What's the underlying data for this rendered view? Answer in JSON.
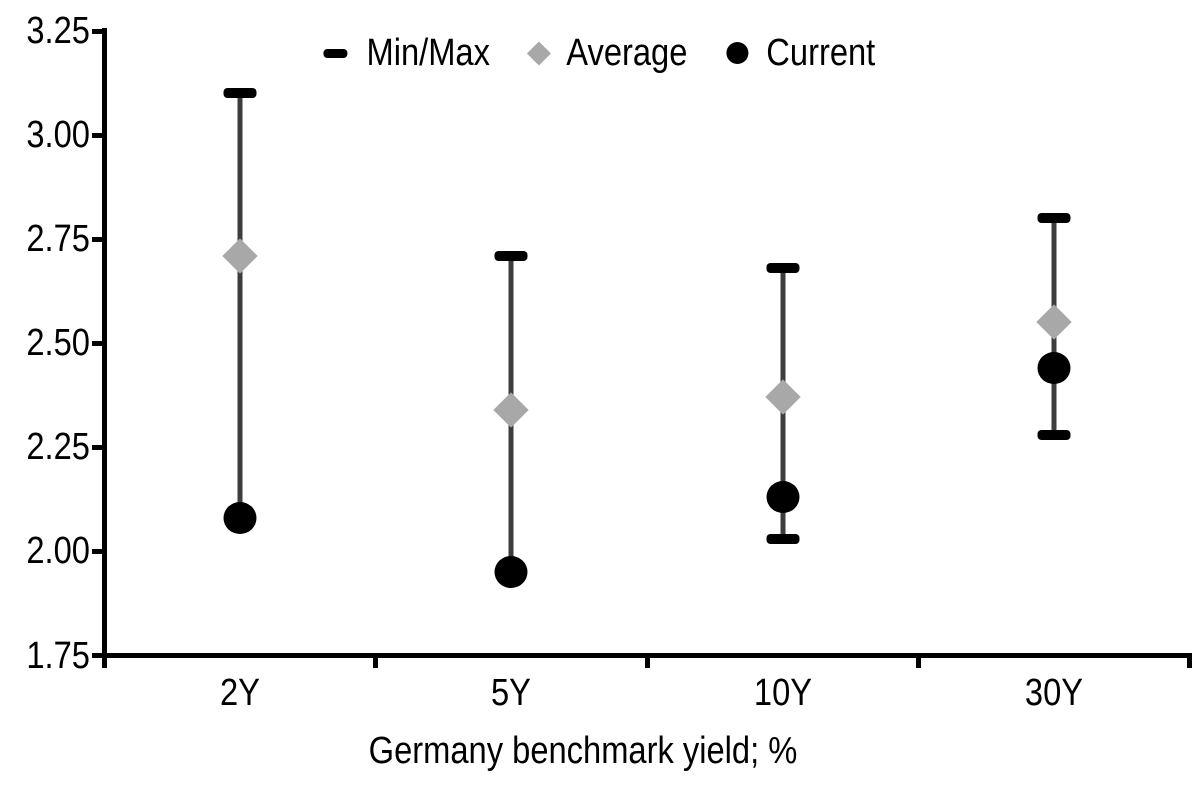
{
  "chart_data": {
    "type": "scatter",
    "subtype": "min-max-range-with-average-and-current",
    "title": "",
    "xlabel": "Germany benchmark yield; %",
    "ylabel": "",
    "categories": [
      "2Y",
      "5Y",
      "10Y",
      "30Y"
    ],
    "series": [
      {
        "name": "Min/Max",
        "marker": "dash-cap",
        "color": "#000000",
        "max_values": [
          3.1,
          2.71,
          2.68,
          2.8
        ],
        "min_values": [
          2.08,
          1.95,
          2.03,
          2.28
        ],
        "min_cap_visible": [
          false,
          false,
          true,
          true
        ]
      },
      {
        "name": "Average",
        "marker": "diamond",
        "color": "#a8a8a8",
        "values": [
          2.71,
          2.34,
          2.37,
          2.55
        ]
      },
      {
        "name": "Current",
        "marker": "circle",
        "color": "#000000",
        "values": [
          2.08,
          1.95,
          2.13,
          2.44
        ]
      }
    ],
    "ylim": [
      1.75,
      3.25
    ],
    "y_tick_step": 0.25,
    "y_tick_labels": [
      "1.75",
      "2.00",
      "2.25",
      "2.50",
      "2.75",
      "3.00",
      "3.25"
    ],
    "grid": false,
    "legend_position": "top-center",
    "colors": {
      "range_line": "#3d3d3d",
      "range_cap": "#000000",
      "average_marker": "#a8a8a8",
      "current_marker": "#000000",
      "axis": "#000000",
      "text": "#000000",
      "background": "#ffffff"
    }
  },
  "legend": {
    "items": [
      {
        "label": "Min/Max",
        "icon": "dash-icon"
      },
      {
        "label": "Average",
        "icon": "diamond-icon"
      },
      {
        "label": "Current",
        "icon": "circle-icon"
      }
    ]
  }
}
